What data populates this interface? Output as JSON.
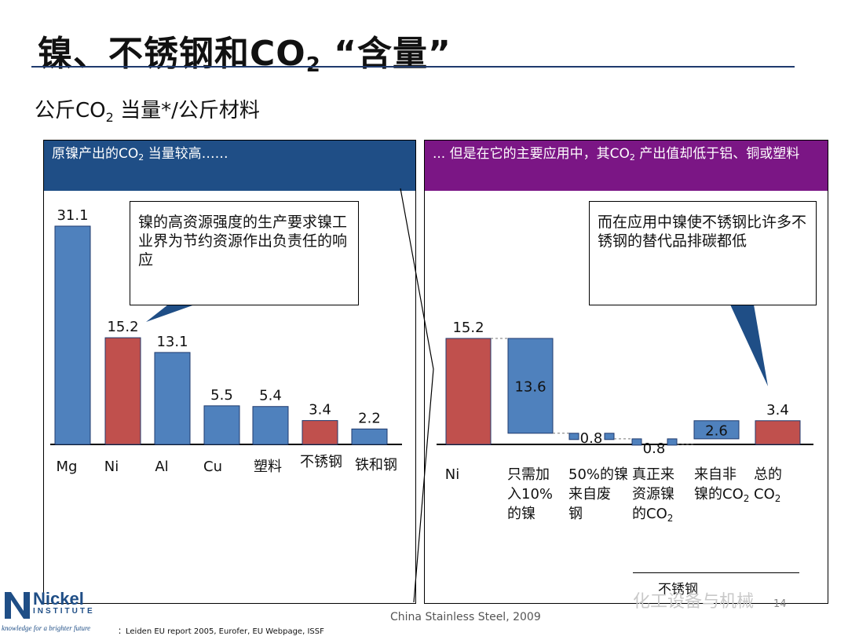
{
  "title_main": "镍、不锈钢和CO",
  "title_sub": "2",
  "title_tail": " “含量”",
  "subtitle_main": "公斤CO",
  "subtitle_sub": "2",
  "subtitle_tail": " 当量*/公斤材料",
  "left_panel": {
    "header_a": "原镍产出的CO",
    "header_sub": "2",
    "header_b": " 当量较高……",
    "callout": "镍的高资源强度的生产要求镍工业界为节约资源作出负责任的响应"
  },
  "right_panel": {
    "header_a": "... 但是在它的主要应用中，其CO",
    "header_sub": "2",
    "header_b": " 产出值却低于铝、铜或塑料",
    "callout": "而在应用中镍使不锈钢比许多不锈钢的替代品排碳都低",
    "stainless_label": "不锈钢"
  },
  "chart_data": [
    {
      "type": "bar",
      "categories": [
        "Mg",
        "Ni",
        "Al",
        "Cu",
        "塑料",
        "不锈钢",
        "铁和钢"
      ],
      "values": [
        31.1,
        15.2,
        13.1,
        5.5,
        5.4,
        3.4,
        2.2
      ],
      "value_labels": [
        "31.1",
        "15.2",
        "13.1",
        "5.5",
        "5.4",
        "3.4",
        "2.2"
      ],
      "bar_colors": [
        "#4f81bd",
        "#c0504d",
        "#4f81bd",
        "#4f81bd",
        "#4f81bd",
        "#c0504d",
        "#4f81bd"
      ],
      "ylim": [
        0,
        31.1
      ]
    },
    {
      "type": "waterfall",
      "categories": [
        "Ni",
        "只需加入10%的镍",
        "50%的镍来自废钢",
        "真正来资源镍的CO2",
        "来自非镍的CO2",
        "总的CO2"
      ],
      "steps": [
        {
          "start": 0,
          "end": 15.2,
          "label": "15.2",
          "color": "#c0504d"
        },
        {
          "start": 15.2,
          "end": 1.6,
          "label": "13.6",
          "color": "#4f81bd"
        },
        {
          "start": 1.6,
          "end": 0.8,
          "label": "0.8",
          "color": "#4f81bd"
        },
        {
          "start": 0.8,
          "end": 0.0,
          "label": "0.8",
          "color": "#4f81bd"
        },
        {
          "start": 0.8,
          "end": 3.4,
          "label": "2.6",
          "color": "#4f81bd"
        },
        {
          "start": 0,
          "end": 3.4,
          "label": "3.4",
          "color": "#c0504d"
        }
      ],
      "ylim": [
        0,
        15.2
      ]
    }
  ],
  "footer": {
    "center": "China Stainless Steel, 2009",
    "source": "：Leiden EU report 2005, Eurofer, EU Webpage, ISSF",
    "logo_word": "Nickel",
    "logo_inst": "INSTITUTE",
    "logo_tag": "knowledge for a brighter future",
    "page": "14",
    "watermark": "化工设备与机械"
  }
}
